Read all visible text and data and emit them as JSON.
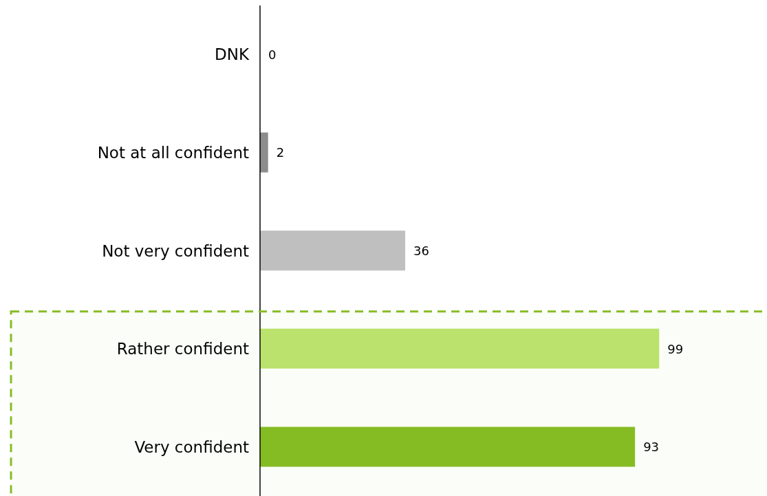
{
  "chart_data": {
    "type": "bar",
    "orientation": "horizontal",
    "categories": [
      "DNK",
      "Not at all confident",
      "Not very confident",
      "Rather confident",
      "Very confident"
    ],
    "values": [
      0,
      2,
      36,
      99,
      93
    ],
    "colors": [
      "#8c8c8c",
      "#8c8c8c",
      "#bfbfbf",
      "#bce46f",
      "#86bc25"
    ],
    "data_labels": true,
    "bands": [
      {
        "axis": "y",
        "from": "Rather confident",
        "to": "Very confident",
        "color": "#86bc25"
      }
    ]
  }
}
